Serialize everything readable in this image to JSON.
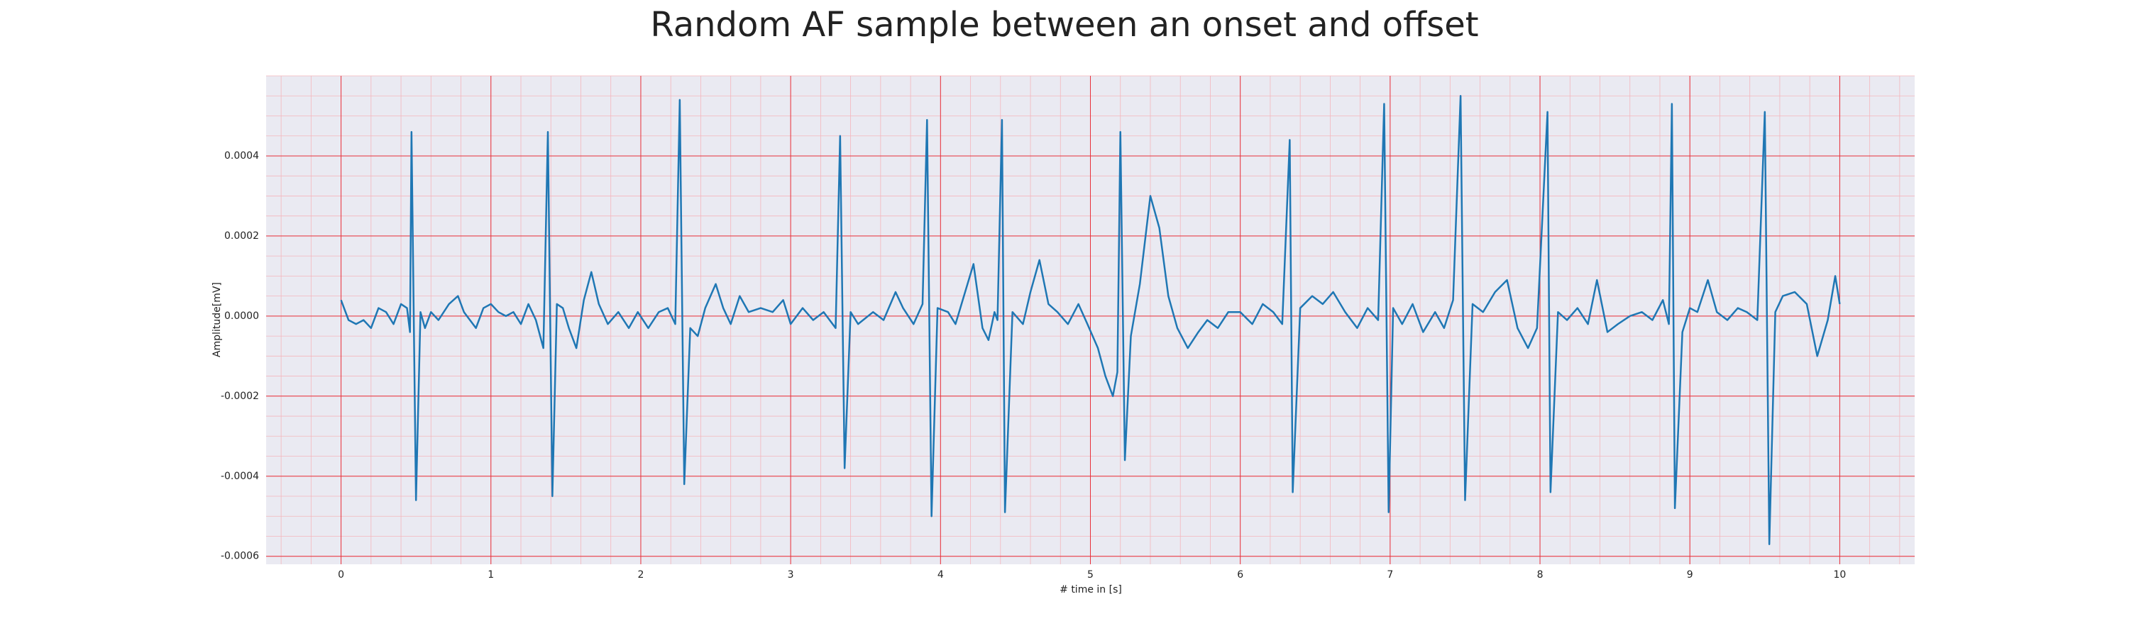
{
  "chart_data": {
    "type": "line",
    "title": "Random AF sample between an onset and offset",
    "xlabel": "# time in [s]",
    "ylabel": "Amplitude[mV]",
    "color": "#1f77b4",
    "grid": true,
    "minor_grid": true,
    "xlim": [
      -0.5,
      10.5
    ],
    "ylim": [
      -0.00062,
      0.0006
    ],
    "xticks": [
      0,
      1,
      2,
      3,
      4,
      5,
      6,
      7,
      8,
      9,
      10
    ],
    "yticks": [
      -0.0006,
      -0.0004,
      -0.0002,
      {
        "value": 0,
        "label": "0.0000"
      },
      0.0002,
      0.0004
    ],
    "x": [
      0,
      0.05,
      0.1,
      0.15,
      0.2,
      0.25,
      0.3,
      0.35,
      0.4,
      0.44,
      0.46,
      0.47,
      0.5,
      0.53,
      0.56,
      0.6,
      0.65,
      0.72,
      0.78,
      0.82,
      0.9,
      0.95,
      1.0,
      1.05,
      1.1,
      1.15,
      1.2,
      1.25,
      1.3,
      1.35,
      1.38,
      1.41,
      1.44,
      1.48,
      1.52,
      1.57,
      1.62,
      1.67,
      1.72,
      1.78,
      1.85,
      1.92,
      1.98,
      2.05,
      2.12,
      2.18,
      2.23,
      2.26,
      2.29,
      2.33,
      2.38,
      2.43,
      2.5,
      2.55,
      2.6,
      2.66,
      2.72,
      2.8,
      2.88,
      2.95,
      3.0,
      3.08,
      3.15,
      3.22,
      3.3,
      3.33,
      3.36,
      3.4,
      3.45,
      3.55,
      3.62,
      3.7,
      3.75,
      3.82,
      3.88,
      3.91,
      3.94,
      3.98,
      4.05,
      4.1,
      4.18,
      4.22,
      4.28,
      4.32,
      4.36,
      4.38,
      4.41,
      4.43,
      4.48,
      4.55,
      4.6,
      4.66,
      4.72,
      4.78,
      4.85,
      4.92,
      4.98,
      5.05,
      5.1,
      5.15,
      5.18,
      5.2,
      5.23,
      5.27,
      5.33,
      5.4,
      5.46,
      5.52,
      5.58,
      5.65,
      5.72,
      5.78,
      5.85,
      5.92,
      6.0,
      6.08,
      6.15,
      6.22,
      6.28,
      6.33,
      6.35,
      6.4,
      6.48,
      6.55,
      6.62,
      6.7,
      6.78,
      6.85,
      6.92,
      6.96,
      6.99,
      7.02,
      7.08,
      7.15,
      7.22,
      7.3,
      7.36,
      7.42,
      7.47,
      7.5,
      7.55,
      7.62,
      7.7,
      7.78,
      7.85,
      7.92,
      7.98,
      8.05,
      8.07,
      8.12,
      8.18,
      8.25,
      8.32,
      8.38,
      8.45,
      8.52,
      8.6,
      8.68,
      8.75,
      8.82,
      8.86,
      8.88,
      8.9,
      8.95,
      9.0,
      9.05,
      9.12,
      9.18,
      9.25,
      9.32,
      9.38,
      9.45,
      9.5,
      9.53,
      9.57,
      9.62,
      9.7,
      9.78,
      9.85,
      9.92,
      9.97,
      10.0
    ],
    "values": [
      4e-05,
      -1e-05,
      -2e-05,
      -1e-05,
      -3e-05,
      2e-05,
      1e-05,
      -2e-05,
      3e-05,
      2e-05,
      -4e-05,
      0.00046,
      -0.00046,
      1e-05,
      -3e-05,
      1e-05,
      -1e-05,
      3e-05,
      5e-05,
      1e-05,
      -3e-05,
      2e-05,
      3e-05,
      1e-05,
      0,
      1e-05,
      -2e-05,
      3e-05,
      -1e-05,
      -8e-05,
      0.00046,
      -0.00045,
      3e-05,
      2e-05,
      -3e-05,
      -8e-05,
      4e-05,
      0.00011,
      3e-05,
      -2e-05,
      1e-05,
      -3e-05,
      1e-05,
      -3e-05,
      1e-05,
      2e-05,
      -2e-05,
      0.00054,
      -0.00042,
      -3e-05,
      -5e-05,
      2e-05,
      8e-05,
      2e-05,
      -2e-05,
      5e-05,
      1e-05,
      2e-05,
      1e-05,
      4e-05,
      -2e-05,
      2e-05,
      -1e-05,
      1e-05,
      -3e-05,
      0.00045,
      -0.00038,
      1e-05,
      -2e-05,
      1e-05,
      -1e-05,
      6e-05,
      2e-05,
      -2e-05,
      3e-05,
      0.00049,
      -0.0005,
      2e-05,
      1e-05,
      -2e-05,
      8e-05,
      0.00013,
      -3e-05,
      -6e-05,
      1e-05,
      -1e-05,
      0.00049,
      -0.00049,
      1e-05,
      -2e-05,
      6e-05,
      0.00014,
      3e-05,
      1e-05,
      -2e-05,
      3e-05,
      -2e-05,
      -8e-05,
      -0.00015,
      -0.0002,
      -0.00014,
      0.00046,
      -0.00036,
      -5e-05,
      8e-05,
      0.0003,
      0.00022,
      5e-05,
      -3e-05,
      -8e-05,
      -4e-05,
      -1e-05,
      -3e-05,
      1e-05,
      1e-05,
      -2e-05,
      3e-05,
      1e-05,
      -2e-05,
      0.00044,
      -0.00044,
      2e-05,
      5e-05,
      3e-05,
      6e-05,
      1e-05,
      -3e-05,
      2e-05,
      -1e-05,
      0.00053,
      -0.00049,
      2e-05,
      -2e-05,
      3e-05,
      -4e-05,
      1e-05,
      -3e-05,
      4e-05,
      0.00055,
      -0.00046,
      3e-05,
      1e-05,
      6e-05,
      9e-05,
      -3e-05,
      -8e-05,
      -3e-05,
      0.00051,
      -0.00044,
      1e-05,
      -1e-05,
      2e-05,
      -2e-05,
      9e-05,
      -4e-05,
      -2e-05,
      0,
      1e-05,
      -1e-05,
      4e-05,
      -2e-05,
      0.00053,
      -0.00048,
      -4e-05,
      2e-05,
      1e-05,
      9e-05,
      1e-05,
      -1e-05,
      2e-05,
      1e-05,
      -1e-05,
      0.00051,
      -0.00057,
      1e-05,
      5e-05,
      6e-05,
      3e-05,
      -0.0001,
      -1e-05,
      0.0001,
      3e-05
    ]
  }
}
